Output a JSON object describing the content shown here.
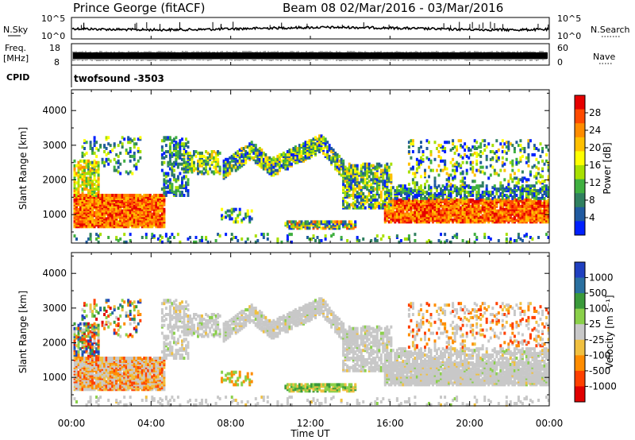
{
  "header": {
    "title": "Prince George (fitACF)",
    "beam_range": "Beam 08  02/Mar/2016 - 03/Mar/2016"
  },
  "top_panels": {
    "nsky": {
      "left_label": "N.Sky",
      "left_ticks": [
        "10^5",
        "10^0"
      ],
      "right_label": "N.Search",
      "right_ticks": [
        "10^5",
        "10^0"
      ]
    },
    "freq": {
      "left_label_1": "Freq.",
      "left_label_2": "[MHz]",
      "left_ticks": [
        "18",
        "8"
      ],
      "right_label": "Nave",
      "right_ticks": [
        "60",
        "0"
      ]
    },
    "cpid": {
      "label": "CPID",
      "value": "twofsound -3503"
    }
  },
  "chart_data": [
    {
      "type": "heatmap",
      "name": "Power",
      "ylabel": "Slant Range [km]",
      "yticks": [
        1000,
        2000,
        3000,
        4000
      ],
      "ylim": [
        180,
        4600
      ],
      "xlim_hours": [
        0,
        24
      ],
      "colorbar": {
        "label": "Power [dB]",
        "ticks": [
          "28",
          "24",
          "20",
          "16",
          "12",
          "8",
          "4"
        ],
        "colors": [
          "#e60000",
          "#ff4a00",
          "#ff8c00",
          "#ffc000",
          "#ffff00",
          "#a8e000",
          "#40b040",
          "#308060",
          "#205aa0",
          "#0020ff"
        ]
      }
    },
    {
      "type": "heatmap",
      "name": "Velocity",
      "ylabel": "Slant Range [km]",
      "yticks": [
        1000,
        2000,
        3000,
        4000
      ],
      "ylim": [
        180,
        4600
      ],
      "xlim_hours": [
        0,
        24
      ],
      "colorbar": {
        "label": "Velocity [m s⁻¹]",
        "ticks": [
          "1000",
          "500",
          "100",
          "25",
          "-25",
          "-100",
          "-500",
          "-1000"
        ],
        "colors": [
          "#2040c0",
          "#2a70a0",
          "#3a9a3a",
          "#8ad04a",
          "#c8c8c8",
          "#f0c040",
          "#ff8c00",
          "#ff4000",
          "#e00000"
        ]
      }
    }
  ],
  "xaxis": {
    "ticks": [
      "00:00",
      "04:00",
      "08:00",
      "12:00",
      "16:00",
      "20:00",
      "00:00"
    ],
    "label": "Time UT"
  },
  "colors": {
    "axis": "#000000",
    "ground": "#c8c8c8"
  }
}
